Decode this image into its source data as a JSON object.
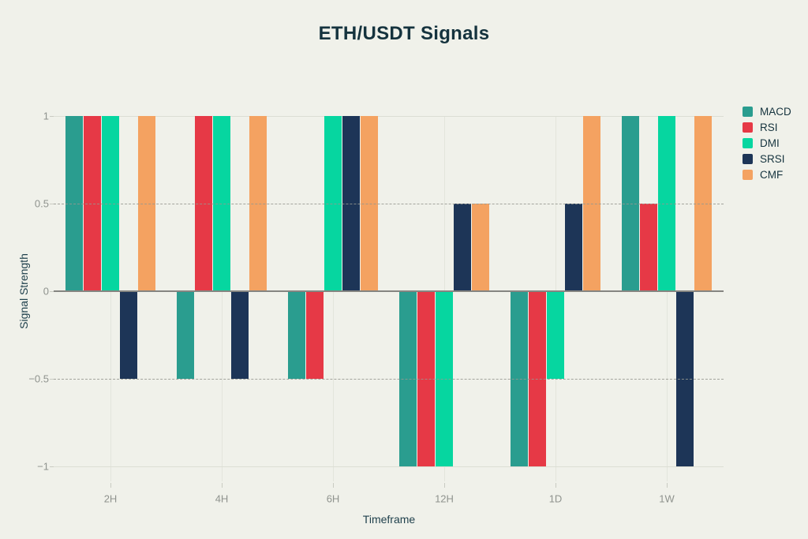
{
  "title": "ETH/USDT Signals",
  "colors": {
    "background": "#f0f1ea",
    "title_text": "#15333e",
    "axis_title_text": "#1f404c",
    "tick_label_text": "#8f938e",
    "gridline_solid": "#dcded4",
    "gridline_dashed": "#96978f",
    "zero_line": "#858581"
  },
  "chart_data": {
    "type": "bar",
    "title": "ETH/USDT Signals",
    "xlabel": "Timeframe",
    "ylabel": "Signal Strength",
    "categories": [
      "2H",
      "4H",
      "6H",
      "12H",
      "1D",
      "1W"
    ],
    "series": [
      {
        "name": "MACD",
        "color": "#2a9d8f",
        "values": [
          1,
          -0.5,
          -0.5,
          -1,
          -1,
          1
        ]
      },
      {
        "name": "RSI",
        "color": "#e63946",
        "values": [
          1,
          1,
          -0.5,
          -1,
          -1,
          0.5
        ]
      },
      {
        "name": "DMI",
        "color": "#06d6a0",
        "values": [
          1,
          1,
          1,
          -1,
          -0.5,
          1
        ]
      },
      {
        "name": "SRSI",
        "color": "#1d3557",
        "values": [
          -0.5,
          -0.5,
          1,
          0.5,
          0.5,
          -1
        ]
      },
      {
        "name": "CMF",
        "color": "#f4a261",
        "values": [
          1,
          1,
          1,
          0.5,
          1,
          1
        ]
      }
    ],
    "ylim": [
      -1,
      1
    ],
    "yticks": [
      1,
      0.5,
      0,
      -0.5,
      -1
    ],
    "ytick_labels": [
      "1",
      "0.5",
      "0",
      "−0.5",
      "−1"
    ],
    "grid": "horizontal: solid at ±1, dashed at ±0.5, solid zero line; faint vertical at category centers",
    "legend_position": "right"
  }
}
